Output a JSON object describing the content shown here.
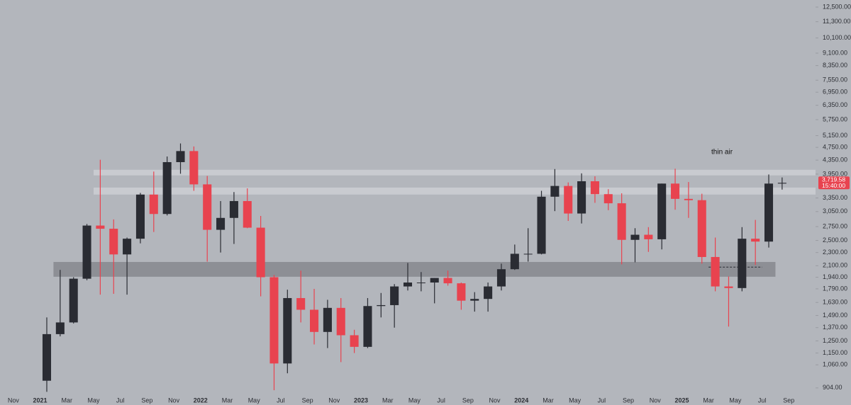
{
  "chart_data": {
    "type": "candlestick",
    "log_scale": true,
    "background": "#b3b6bc",
    "up_color": "#2a2c33",
    "down_color": "#e8434f",
    "x": [
      "2021-01",
      "2021-02",
      "2021-03",
      "2021-04",
      "2021-05",
      "2021-06",
      "2021-07",
      "2021-08",
      "2021-09",
      "2021-10",
      "2021-11",
      "2021-12",
      "2022-01",
      "2022-02",
      "2022-03",
      "2022-04",
      "2022-05",
      "2022-06",
      "2022-07",
      "2022-08",
      "2022-09",
      "2022-10",
      "2022-11",
      "2022-12",
      "2023-01",
      "2023-02",
      "2023-03",
      "2023-04",
      "2023-05",
      "2023-06",
      "2023-07",
      "2023-08",
      "2023-09",
      "2023-10",
      "2023-11",
      "2023-12",
      "2024-01",
      "2024-02",
      "2024-03",
      "2024-04",
      "2024-05",
      "2024-06",
      "2024-07",
      "2024-08",
      "2024-09",
      "2024-10",
      "2024-11",
      "2024-12",
      "2025-01",
      "2025-02",
      "2025-03",
      "2025-04",
      "2025-05",
      "2025-06",
      "2025-07",
      "2025-08"
    ],
    "open": [
      950,
      1310,
      1420,
      1920,
      2770,
      2710,
      2270,
      2530,
      3430,
      3000,
      4290,
      4630,
      3680,
      2690,
      2920,
      3280,
      2730,
      1940,
      1070,
      1680,
      1550,
      1330,
      1570,
      1300,
      1200,
      1590,
      1600,
      1820,
      1870,
      1870,
      1930,
      1860,
      1650,
      1670,
      1820,
      2050,
      2280,
      2280,
      3380,
      3640,
      3010,
      3760,
      3440,
      3230,
      2510,
      2600,
      2520,
      3700,
      3330,
      3300,
      2230,
      1820,
      1800,
      2530,
      2480,
      3700
    ],
    "high": [
      1470,
      2040,
      1940,
      2800,
      4360,
      2890,
      2550,
      3470,
      4020,
      4460,
      4880,
      4780,
      3900,
      3280,
      3490,
      3580,
      2960,
      1970,
      1780,
      2030,
      1790,
      1660,
      1680,
      1350,
      1680,
      1740,
      1850,
      2140,
      2010,
      1930,
      2030,
      1870,
      1750,
      1870,
      2130,
      2430,
      2720,
      3520,
      4090,
      3730,
      3970,
      3890,
      3560,
      3460,
      2720,
      2740,
      3700,
      4100,
      3740,
      3450,
      2550,
      1950,
      2740,
      2880,
      3940,
      3860
    ],
    "low": [
      880,
      1290,
      1410,
      1900,
      1720,
      1730,
      1720,
      2450,
      2650,
      2970,
      3960,
      3520,
      2160,
      2300,
      2440,
      2720,
      1700,
      890,
      1000,
      1420,
      1220,
      1190,
      1080,
      1150,
      1190,
      1470,
      1370,
      1770,
      1760,
      1620,
      1830,
      1550,
      1530,
      1530,
      1770,
      2040,
      2160,
      2270,
      3060,
      2860,
      2810,
      3240,
      3080,
      2120,
      2150,
      2310,
      2350,
      3090,
      2920,
      2130,
      1760,
      1380,
      1760,
      2110,
      2380,
      3550
    ],
    "close": [
      1310,
      1420,
      1920,
      2770,
      2710,
      2270,
      2530,
      3430,
      3000,
      4290,
      4630,
      3680,
      2690,
      2920,
      3280,
      2730,
      1940,
      1070,
      1680,
      1550,
      1330,
      1570,
      1300,
      1200,
      1590,
      1600,
      1820,
      1870,
      1870,
      1930,
      1860,
      1650,
      1670,
      1820,
      2050,
      2280,
      2280,
      3380,
      3640,
      3010,
      3760,
      3440,
      3230,
      2510,
      2600,
      2520,
      3700,
      3330,
      3300,
      2230,
      1820,
      1800,
      2530,
      2480,
      3700,
      3719.58
    ],
    "xlim": [
      "2020-10",
      "2025-11"
    ],
    "xticks": [
      {
        "value": "2020-11",
        "label": "Nov"
      },
      {
        "value": "2021-01",
        "label": "2021"
      },
      {
        "value": "2021-03",
        "label": "Mar"
      },
      {
        "value": "2021-05",
        "label": "May"
      },
      {
        "value": "2021-07",
        "label": "Jul"
      },
      {
        "value": "2021-09",
        "label": "Sep"
      },
      {
        "value": "2021-11",
        "label": "Nov"
      },
      {
        "value": "2022-01",
        "label": "2022"
      },
      {
        "value": "2022-03",
        "label": "Mar"
      },
      {
        "value": "2022-05",
        "label": "May"
      },
      {
        "value": "2022-07",
        "label": "Jul"
      },
      {
        "value": "2022-09",
        "label": "Sep"
      },
      {
        "value": "2022-11",
        "label": "Nov"
      },
      {
        "value": "2023-01",
        "label": "2023"
      },
      {
        "value": "2023-03",
        "label": "Mar"
      },
      {
        "value": "2023-05",
        "label": "May"
      },
      {
        "value": "2023-07",
        "label": "Jul"
      },
      {
        "value": "2023-09",
        "label": "Sep"
      },
      {
        "value": "2023-11",
        "label": "Nov"
      },
      {
        "value": "2024-01",
        "label": "2024"
      },
      {
        "value": "2024-03",
        "label": "Mar"
      },
      {
        "value": "2024-05",
        "label": "May"
      },
      {
        "value": "2024-07",
        "label": "Jul"
      },
      {
        "value": "2024-09",
        "label": "Sep"
      },
      {
        "value": "2024-11",
        "label": "Nov"
      },
      {
        "value": "2025-01",
        "label": "2025"
      },
      {
        "value": "2025-03",
        "label": "Mar"
      },
      {
        "value": "2025-05",
        "label": "May"
      },
      {
        "value": "2025-07",
        "label": "Jul"
      },
      {
        "value": "2025-09",
        "label": "Sep"
      }
    ],
    "ylim": [
      852,
      13125
    ],
    "yticks": [
      {
        "value": 12500,
        "label": "12,500.00"
      },
      {
        "value": 11300,
        "label": "11,300.00"
      },
      {
        "value": 10100,
        "label": "10,100.00"
      },
      {
        "value": 9100,
        "label": "9,100.00"
      },
      {
        "value": 8350,
        "label": "8,350.00"
      },
      {
        "value": 7550,
        "label": "7,550.00"
      },
      {
        "value": 6950,
        "label": "6,950.00"
      },
      {
        "value": 6350,
        "label": "6,350.00"
      },
      {
        "value": 5750,
        "label": "5,750.00"
      },
      {
        "value": 5150,
        "label": "5,150.00"
      },
      {
        "value": 4750,
        "label": "4,750.00"
      },
      {
        "value": 4350,
        "label": "4,350.00"
      },
      {
        "value": 3950,
        "label": "3,950.00"
      },
      {
        "value": 3350,
        "label": "3,350.00"
      },
      {
        "value": 3050,
        "label": "3,050.00"
      },
      {
        "value": 2750,
        "label": "2,750.00"
      },
      {
        "value": 2500,
        "label": "2,500.00"
      },
      {
        "value": 2300,
        "label": "2,300.00"
      },
      {
        "value": 2100,
        "label": "2,100.00"
      },
      {
        "value": 1940,
        "label": "1,940.00"
      },
      {
        "value": 1790,
        "label": "1,790.00"
      },
      {
        "value": 1630,
        "label": "1,630.00"
      },
      {
        "value": 1490,
        "label": "1,490.00"
      },
      {
        "value": 1370,
        "label": "1,370.00"
      },
      {
        "value": 1250,
        "label": "1,250.00"
      },
      {
        "value": 1150,
        "label": "1,150.00"
      },
      {
        "value": 1060,
        "label": "1,060.00"
      },
      {
        "value": 904,
        "label": "904.00"
      }
    ],
    "zones": [
      {
        "low": 3915,
        "high": 4070,
        "from": "2021-05",
        "to": "2025-11",
        "color": "#c9cbd0"
      },
      {
        "low": 3430,
        "high": 3600,
        "from": "2021-05",
        "to": "2025-11",
        "color": "#c9cbd0"
      },
      {
        "low": 1946,
        "high": 2155,
        "from": "2021-02",
        "to": "2025-08",
        "color": "#8d8f95"
      }
    ],
    "dashed_line": {
      "value": 2080,
      "from": "2025-03",
      "to": "2025-07"
    },
    "annotation": {
      "text": "thin air",
      "value": 4600,
      "at": "2025-04"
    },
    "last_price": {
      "value": 3719.58,
      "label": "3,719.58",
      "countdown": "15:40:00",
      "color": "#e8434f"
    }
  }
}
